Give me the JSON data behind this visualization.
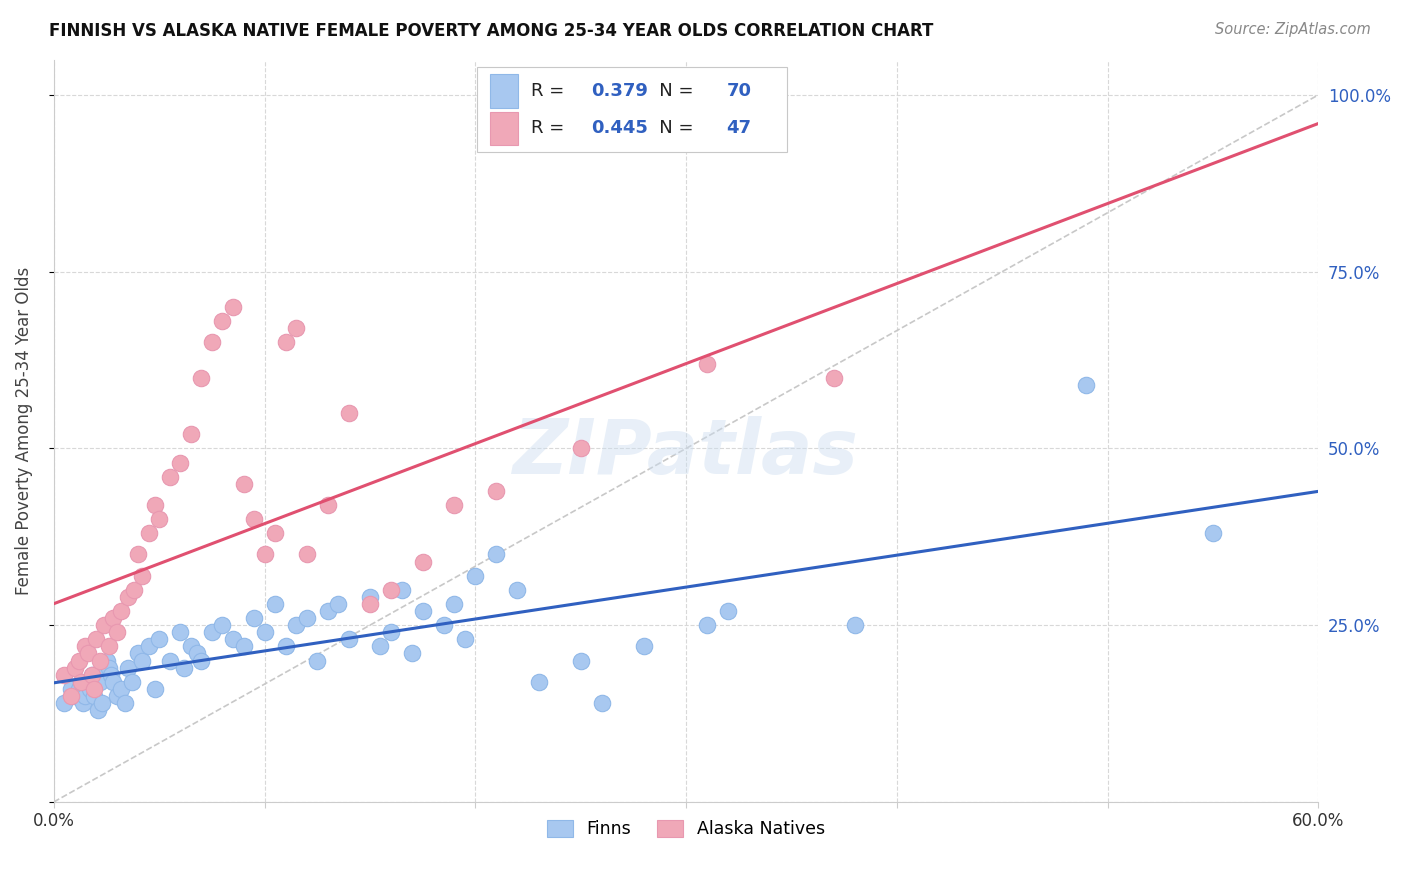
{
  "title": "FINNISH VS ALASKA NATIVE FEMALE POVERTY AMONG 25-34 YEAR OLDS CORRELATION CHART",
  "source": "Source: ZipAtlas.com",
  "ylabel": "Female Poverty Among 25-34 Year Olds",
  "xlim": [
    0.0,
    0.6
  ],
  "ylim": [
    0.0,
    1.05
  ],
  "finns_R": "0.379",
  "finns_N": "70",
  "alaska_R": "0.445",
  "alaska_N": "47",
  "finns_color": "#a8c8f0",
  "alaska_color": "#f0a8b8",
  "finns_line_color": "#3060c0",
  "alaska_line_color": "#e05070",
  "dashed_line_color": "#c8c8c8",
  "background_color": "#ffffff",
  "grid_color": "#d8d8d8",
  "legend_text_color": "#3060c0",
  "ytick_color": "#3060c0",
  "finns_x": [
    0.005,
    0.008,
    0.01,
    0.012,
    0.013,
    0.014,
    0.015,
    0.016,
    0.017,
    0.018,
    0.019,
    0.02,
    0.021,
    0.022,
    0.023,
    0.025,
    0.026,
    0.027,
    0.028,
    0.03,
    0.032,
    0.034,
    0.035,
    0.037,
    0.04,
    0.042,
    0.045,
    0.048,
    0.05,
    0.055,
    0.06,
    0.062,
    0.065,
    0.068,
    0.07,
    0.075,
    0.08,
    0.085,
    0.09,
    0.095,
    0.1,
    0.105,
    0.11,
    0.115,
    0.12,
    0.125,
    0.13,
    0.135,
    0.14,
    0.15,
    0.155,
    0.16,
    0.165,
    0.17,
    0.175,
    0.185,
    0.19,
    0.195,
    0.2,
    0.21,
    0.22,
    0.23,
    0.25,
    0.26,
    0.28,
    0.31,
    0.32,
    0.38,
    0.49,
    0.55
  ],
  "finns_y": [
    0.14,
    0.16,
    0.15,
    0.16,
    0.17,
    0.14,
    0.15,
    0.17,
    0.16,
    0.18,
    0.15,
    0.18,
    0.13,
    0.17,
    0.14,
    0.2,
    0.19,
    0.18,
    0.17,
    0.15,
    0.16,
    0.14,
    0.19,
    0.17,
    0.21,
    0.2,
    0.22,
    0.16,
    0.23,
    0.2,
    0.24,
    0.19,
    0.22,
    0.21,
    0.2,
    0.24,
    0.25,
    0.23,
    0.22,
    0.26,
    0.24,
    0.28,
    0.22,
    0.25,
    0.26,
    0.2,
    0.27,
    0.28,
    0.23,
    0.29,
    0.22,
    0.24,
    0.3,
    0.21,
    0.27,
    0.25,
    0.28,
    0.23,
    0.32,
    0.35,
    0.3,
    0.17,
    0.2,
    0.14,
    0.22,
    0.25,
    0.27,
    0.25,
    0.59,
    0.38
  ],
  "alaska_x": [
    0.005,
    0.008,
    0.01,
    0.012,
    0.013,
    0.015,
    0.016,
    0.018,
    0.019,
    0.02,
    0.022,
    0.024,
    0.026,
    0.028,
    0.03,
    0.032,
    0.035,
    0.038,
    0.04,
    0.042,
    0.045,
    0.048,
    0.05,
    0.055,
    0.06,
    0.065,
    0.07,
    0.075,
    0.08,
    0.085,
    0.09,
    0.095,
    0.1,
    0.105,
    0.11,
    0.115,
    0.12,
    0.13,
    0.14,
    0.15,
    0.16,
    0.175,
    0.19,
    0.21,
    0.25,
    0.31,
    0.37
  ],
  "alaska_y": [
    0.18,
    0.15,
    0.19,
    0.2,
    0.17,
    0.22,
    0.21,
    0.18,
    0.16,
    0.23,
    0.2,
    0.25,
    0.22,
    0.26,
    0.24,
    0.27,
    0.29,
    0.3,
    0.35,
    0.32,
    0.38,
    0.42,
    0.4,
    0.46,
    0.48,
    0.52,
    0.6,
    0.65,
    0.68,
    0.7,
    0.45,
    0.4,
    0.35,
    0.38,
    0.65,
    0.67,
    0.35,
    0.42,
    0.55,
    0.28,
    0.3,
    0.34,
    0.42,
    0.44,
    0.5,
    0.62,
    0.6
  ]
}
